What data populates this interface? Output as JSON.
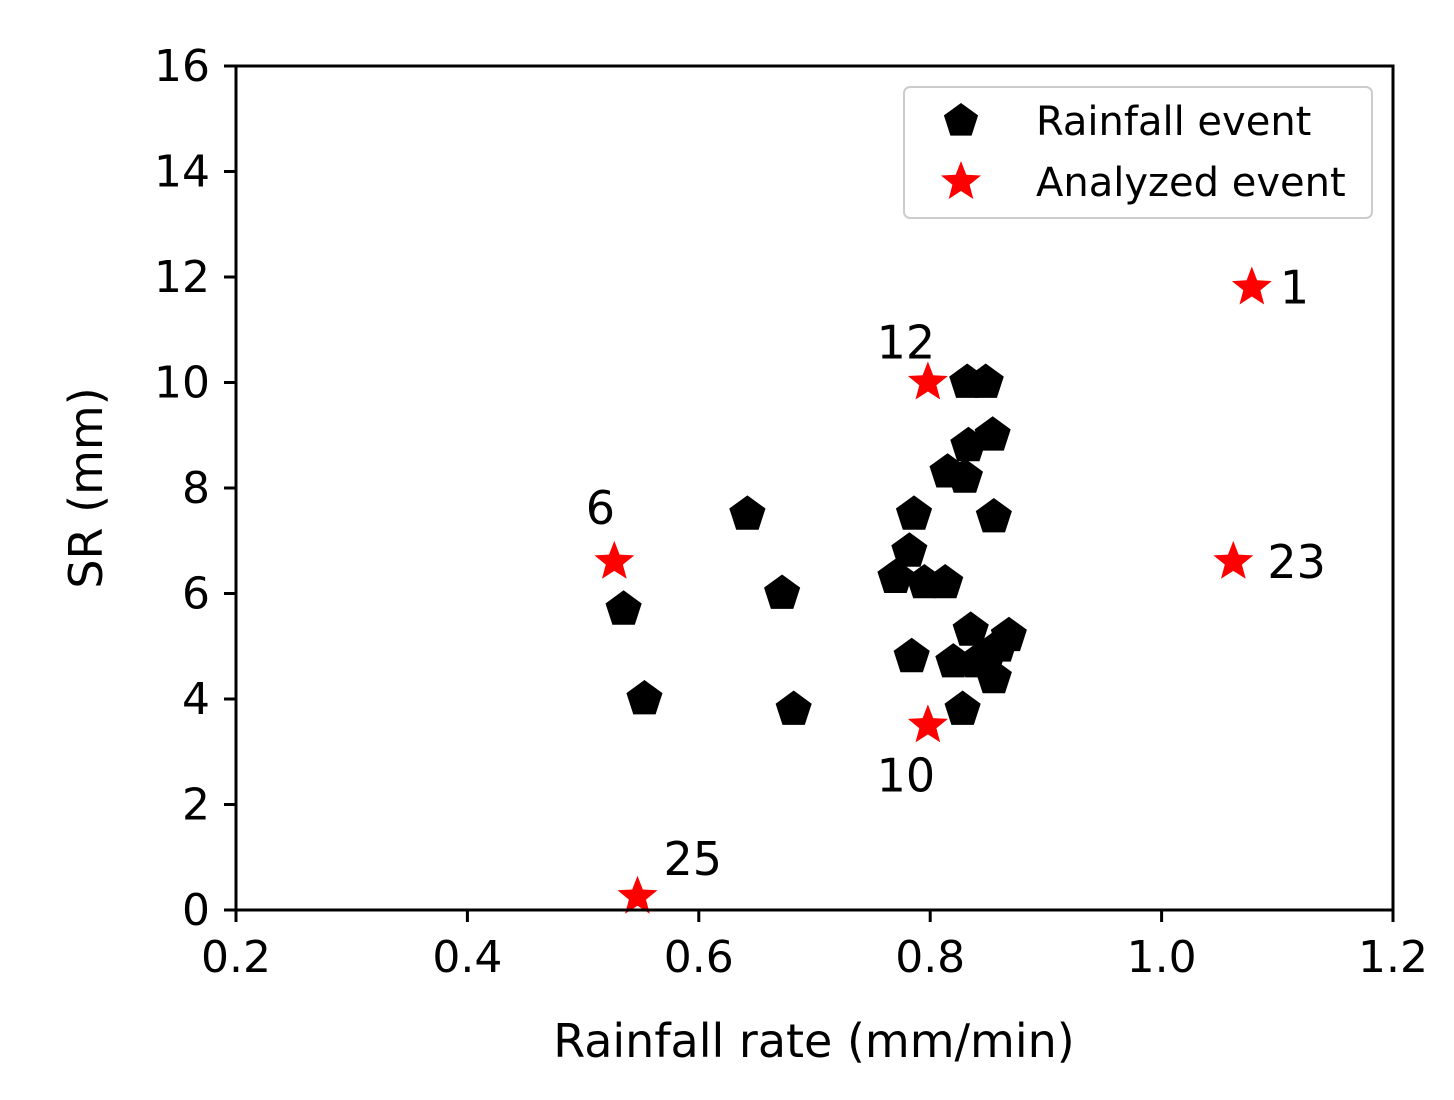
{
  "chart_data": {
    "type": "scatter",
    "title": "",
    "xlabel": "Rainfall rate (mm/min)",
    "ylabel": "SR (mm)",
    "xlim": [
      0.2,
      1.2
    ],
    "ylim": [
      0,
      16
    ],
    "grid": false,
    "xticks": [
      "0.2",
      "0.4",
      "0.6",
      "0.8",
      "1.0",
      "1.2"
    ],
    "yticks": [
      "0",
      "2",
      "4",
      "6",
      "8",
      "10",
      "12",
      "14",
      "16"
    ],
    "legend": {
      "placement": "top-right",
      "entries": [
        {
          "label": "Rainfall event",
          "marker": "pentagon",
          "color": "#000000"
        },
        {
          "label": "Analyzed event",
          "marker": "star",
          "color": "#ff0000"
        }
      ]
    },
    "series": [
      {
        "name": "Rainfall event",
        "marker": "pentagon",
        "color": "#000000",
        "points": [
          {
            "x": 0.535,
            "y": 5.7
          },
          {
            "x": 0.553,
            "y": 4.0
          },
          {
            "x": 0.642,
            "y": 7.5
          },
          {
            "x": 0.672,
            "y": 6.0
          },
          {
            "x": 0.682,
            "y": 3.8
          },
          {
            "x": 0.77,
            "y": 6.3
          },
          {
            "x": 0.782,
            "y": 6.8
          },
          {
            "x": 0.784,
            "y": 4.8
          },
          {
            "x": 0.786,
            "y": 7.5
          },
          {
            "x": 0.795,
            "y": 6.2
          },
          {
            "x": 0.813,
            "y": 6.2
          },
          {
            "x": 0.815,
            "y": 8.3
          },
          {
            "x": 0.82,
            "y": 4.7
          },
          {
            "x": 0.828,
            "y": 3.8
          },
          {
            "x": 0.83,
            "y": 8.2
          },
          {
            "x": 0.832,
            "y": 10.0
          },
          {
            "x": 0.833,
            "y": 8.8
          },
          {
            "x": 0.835,
            "y": 5.3
          },
          {
            "x": 0.84,
            "y": 4.7
          },
          {
            "x": 0.848,
            "y": 10.0
          },
          {
            "x": 0.85,
            "y": 4.8
          },
          {
            "x": 0.854,
            "y": 9.0
          },
          {
            "x": 0.855,
            "y": 7.45
          },
          {
            "x": 0.855,
            "y": 4.4
          },
          {
            "x": 0.86,
            "y": 5.0
          },
          {
            "x": 0.868,
            "y": 5.2
          }
        ]
      },
      {
        "name": "Analyzed event",
        "marker": "star",
        "color": "#ff0000",
        "points": [
          {
            "x": 1.078,
            "y": 11.8,
            "label": "1"
          },
          {
            "x": 0.798,
            "y": 10.0,
            "label": "12"
          },
          {
            "x": 0.527,
            "y": 6.6,
            "label": "6"
          },
          {
            "x": 1.062,
            "y": 6.6,
            "label": "23"
          },
          {
            "x": 0.798,
            "y": 3.5,
            "label": "10"
          },
          {
            "x": 0.547,
            "y": 0.25,
            "label": "25"
          }
        ]
      }
    ]
  }
}
